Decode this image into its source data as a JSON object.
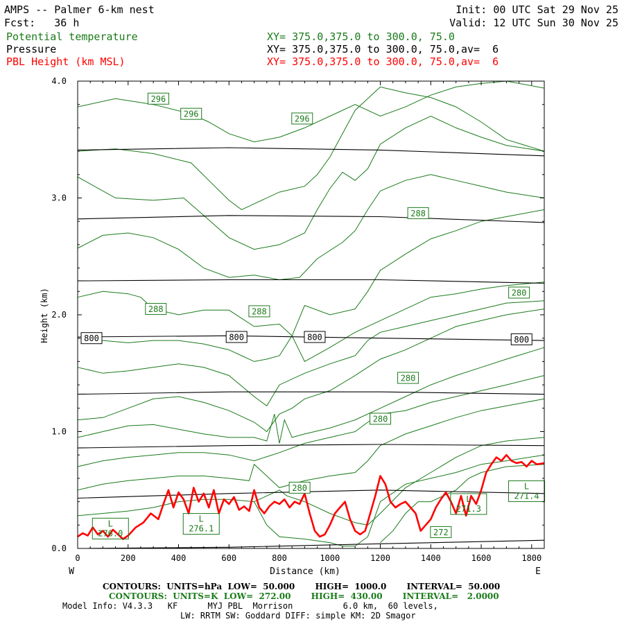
{
  "header": {
    "title": "AMPS -- Palmer 6-km nest",
    "fcst": "Fcst:   36 h",
    "init": "Init: 00 UTC Sat 29 Nov 25",
    "valid": "Valid: 12 UTC Sun 30 Nov 25",
    "fields": [
      {
        "name": "Potential temperature",
        "xy": "XY= 375.0,375.0 to 300.0, 75.0",
        "color": "#1a7a1a"
      },
      {
        "name": "Pressure",
        "xy": "XY= 375.0,375.0 to 300.0, 75.0,av=  6",
        "color": "#000000"
      },
      {
        "name": "PBL Height (km MSL)",
        "xy": "XY= 375.0,375.0 to 300.0, 75.0,av=  6",
        "color": "#ff0000"
      }
    ]
  },
  "chart_data": {
    "type": "line",
    "xlabel": "Distance (km)",
    "ylabel": "Height (km)",
    "xlim": [
      0,
      1850
    ],
    "ylim": [
      0,
      4.0
    ],
    "xticks": [
      0,
      200,
      400,
      600,
      800,
      1000,
      1200,
      1400,
      1600,
      1800
    ],
    "yticks": [
      0.0,
      1.0,
      2.0,
      3.0,
      4.0
    ],
    "ytick_labels": [
      "0.0",
      "1.0",
      "2.0",
      "3.0",
      "4.0"
    ],
    "left_label": "W",
    "right_label": "E",
    "pressure_contours": [
      {
        "x": [
          0,
          600,
          1200,
          1850
        ],
        "y": [
          3.41,
          3.43,
          3.41,
          3.36
        ]
      },
      {
        "x": [
          0,
          600,
          1200,
          1850
        ],
        "y": [
          2.82,
          2.85,
          2.84,
          2.79
        ]
      },
      {
        "x": [
          0,
          600,
          1200,
          1850
        ],
        "y": [
          2.29,
          2.3,
          2.3,
          2.27
        ]
      },
      {
        "x": [
          0,
          600,
          1200,
          1850
        ],
        "y": [
          1.81,
          1.82,
          1.8,
          1.78
        ]
      },
      {
        "x": [
          0,
          600,
          1200,
          1850
        ],
        "y": [
          1.32,
          1.34,
          1.34,
          1.32
        ]
      },
      {
        "x": [
          0,
          600,
          1200,
          1850
        ],
        "y": [
          0.86,
          0.88,
          0.89,
          0.88
        ]
      },
      {
        "x": [
          0,
          600,
          1200,
          1850
        ],
        "y": [
          0.43,
          0.47,
          0.5,
          0.47
        ]
      },
      {
        "x": [
          0,
          600,
          1200,
          1850
        ],
        "y": [
          0.0,
          0.01,
          0.04,
          0.07
        ]
      }
    ],
    "pressure_labels": [
      {
        "text": "800",
        "x": 55,
        "y": 1.8
      },
      {
        "text": "800",
        "x": 630,
        "y": 1.81
      },
      {
        "text": "800",
        "x": 940,
        "y": 1.81
      },
      {
        "text": "800",
        "x": 1760,
        "y": 1.79
      }
    ],
    "theta_contours": [
      {
        "x": [
          0,
          150,
          300,
          450,
          520,
          600,
          700,
          800,
          900,
          1000,
          1100,
          1200,
          1300,
          1400,
          1500,
          1600,
          1700,
          1800,
          1850
        ],
        "y": [
          3.78,
          3.85,
          3.8,
          3.72,
          3.65,
          3.55,
          3.48,
          3.52,
          3.6,
          3.7,
          3.8,
          3.7,
          3.78,
          3.88,
          3.95,
          3.98,
          4.0,
          3.96,
          3.94
        ]
      },
      {
        "x": [
          0,
          150,
          300,
          450,
          520,
          600,
          650,
          700,
          800,
          900,
          950,
          1000,
          1050,
          1100,
          1200,
          1300,
          1400,
          1500,
          1600,
          1700,
          1850
        ],
        "y": [
          3.4,
          3.42,
          3.38,
          3.3,
          3.15,
          2.98,
          2.9,
          2.95,
          3.05,
          3.1,
          3.2,
          3.35,
          3.55,
          3.75,
          3.95,
          3.9,
          3.86,
          3.78,
          3.65,
          3.5,
          3.4
        ]
      },
      {
        "x": [
          0,
          150,
          300,
          420,
          500,
          600,
          700,
          800,
          900,
          950,
          1000,
          1050,
          1100,
          1150,
          1200,
          1300,
          1400,
          1500,
          1600,
          1700,
          1850
        ],
        "y": [
          3.18,
          3.0,
          2.98,
          3.0,
          2.85,
          2.66,
          2.56,
          2.6,
          2.7,
          2.9,
          3.08,
          3.22,
          3.15,
          3.25,
          3.46,
          3.6,
          3.7,
          3.6,
          3.52,
          3.45,
          3.4
        ]
      },
      {
        "x": [
          0,
          100,
          200,
          300,
          400,
          500,
          600,
          700,
          800,
          880,
          950,
          1050,
          1100,
          1150,
          1200,
          1300,
          1400,
          1500,
          1600,
          1700,
          1850
        ],
        "y": [
          2.57,
          2.68,
          2.7,
          2.66,
          2.56,
          2.4,
          2.32,
          2.34,
          2.3,
          2.32,
          2.48,
          2.62,
          2.72,
          2.9,
          3.06,
          3.15,
          3.2,
          3.15,
          3.1,
          3.05,
          3.0
        ]
      },
      {
        "x": [
          0,
          100,
          200,
          250,
          300,
          400,
          500,
          600,
          700,
          800,
          850,
          900,
          1000,
          1100,
          1150,
          1200,
          1300,
          1400,
          1500,
          1600,
          1700,
          1850
        ],
        "y": [
          2.15,
          2.2,
          2.18,
          2.15,
          2.05,
          2.0,
          2.04,
          2.04,
          1.9,
          1.92,
          1.82,
          2.08,
          2.0,
          2.05,
          2.2,
          2.38,
          2.52,
          2.65,
          2.72,
          2.8,
          2.84,
          2.9
        ]
      },
      {
        "x": [
          0,
          100,
          200,
          300,
          400,
          500,
          600,
          650,
          700,
          750,
          800,
          850,
          900,
          1000,
          1100,
          1200,
          1300,
          1400,
          1500,
          1600,
          1700,
          1850
        ],
        "y": [
          1.8,
          1.78,
          1.76,
          1.78,
          1.78,
          1.75,
          1.7,
          1.65,
          1.6,
          1.62,
          1.65,
          1.82,
          1.6,
          1.72,
          1.85,
          1.95,
          2.05,
          2.15,
          2.18,
          2.22,
          2.25,
          2.28
        ]
      },
      {
        "x": [
          0,
          100,
          200,
          300,
          400,
          500,
          600,
          700,
          750,
          800,
          900,
          1000,
          1100,
          1150,
          1200,
          1300,
          1400,
          1500,
          1600,
          1700,
          1850
        ],
        "y": [
          1.55,
          1.5,
          1.52,
          1.55,
          1.58,
          1.55,
          1.48,
          1.3,
          1.22,
          1.4,
          1.5,
          1.58,
          1.65,
          1.78,
          1.85,
          1.9,
          1.95,
          2.0,
          2.05,
          2.1,
          2.12
        ]
      },
      {
        "x": [
          0,
          100,
          200,
          300,
          400,
          500,
          600,
          700,
          750,
          800,
          850,
          900,
          1000,
          1100,
          1200,
          1300,
          1400,
          1500,
          1600,
          1700,
          1850
        ],
        "y": [
          1.1,
          1.12,
          1.2,
          1.28,
          1.3,
          1.25,
          1.18,
          1.08,
          1.0,
          1.15,
          1.2,
          1.28,
          1.35,
          1.48,
          1.62,
          1.7,
          1.8,
          1.9,
          1.95,
          2.0,
          2.05
        ]
      },
      {
        "x": [
          0,
          100,
          200,
          300,
          400,
          500,
          600,
          700,
          750,
          780,
          800,
          820,
          850,
          900,
          1000,
          1100,
          1200,
          1300,
          1400,
          1500,
          1600,
          1700,
          1850
        ],
        "y": [
          0.95,
          1.0,
          1.05,
          1.06,
          1.02,
          0.98,
          0.95,
          0.95,
          0.92,
          1.15,
          0.9,
          1.1,
          0.95,
          0.98,
          1.03,
          1.1,
          1.2,
          1.3,
          1.4,
          1.48,
          1.55,
          1.62,
          1.72
        ]
      },
      {
        "x": [
          0,
          100,
          200,
          300,
          400,
          500,
          600,
          700,
          800,
          900,
          1000,
          1100,
          1150,
          1200,
          1300,
          1400,
          1500,
          1600,
          1700,
          1850
        ],
        "y": [
          0.7,
          0.75,
          0.78,
          0.8,
          0.82,
          0.82,
          0.8,
          0.75,
          0.82,
          0.9,
          0.95,
          1.0,
          1.08,
          1.15,
          1.18,
          1.25,
          1.3,
          1.35,
          1.4,
          1.48
        ]
      },
      {
        "x": [
          0,
          100,
          200,
          300,
          400,
          500,
          600,
          680,
          700,
          800,
          900,
          1000,
          1100,
          1150,
          1200,
          1300,
          1400,
          1500,
          1600,
          1700,
          1850
        ],
        "y": [
          0.5,
          0.55,
          0.58,
          0.6,
          0.62,
          0.62,
          0.6,
          0.58,
          0.72,
          0.52,
          0.58,
          0.62,
          0.65,
          0.75,
          0.88,
          0.98,
          1.05,
          1.12,
          1.18,
          1.22,
          1.28
        ]
      },
      {
        "x": [
          0,
          100,
          200,
          300,
          400,
          500,
          600,
          700,
          800,
          830,
          900,
          1000,
          1100,
          1150,
          1200,
          1300,
          1400,
          1500,
          1600,
          1700,
          1850
        ],
        "y": [
          0.28,
          0.3,
          0.32,
          0.35,
          0.4,
          0.42,
          0.42,
          0.4,
          0.5,
          0.45,
          0.4,
          0.3,
          0.22,
          0.2,
          0.3,
          0.52,
          0.65,
          0.78,
          0.88,
          0.92,
          0.95
        ]
      },
      {
        "x": [
          700,
          750,
          800,
          900,
          1000,
          1050,
          1100,
          1150,
          1200,
          1300,
          1400,
          1500,
          1600,
          1700,
          1850
        ],
        "y": [
          0.4,
          0.2,
          0.1,
          0.08,
          0.05,
          0.02,
          0.02,
          0.1,
          0.4,
          0.55,
          0.6,
          0.65,
          0.72,
          0.75,
          0.8
        ]
      },
      {
        "x": [
          1200,
          1250,
          1300,
          1350,
          1400,
          1450,
          1500,
          1550,
          1600,
          1700,
          1850
        ],
        "y": [
          0.05,
          0.15,
          0.3,
          0.4,
          0.4,
          0.45,
          0.5,
          0.6,
          0.65,
          0.7,
          0.72
        ]
      }
    ],
    "theta_labels": [
      {
        "text": "296",
        "x": 320,
        "y": 3.85
      },
      {
        "text": "296",
        "x": 450,
        "y": 3.72
      },
      {
        "text": "296",
        "x": 890,
        "y": 3.68
      },
      {
        "text": "288",
        "x": 1350,
        "y": 2.87
      },
      {
        "text": "280",
        "x": 1750,
        "y": 2.19
      },
      {
        "text": "288",
        "x": 310,
        "y": 2.05
      },
      {
        "text": "288",
        "x": 720,
        "y": 2.03
      },
      {
        "text": "280",
        "x": 1310,
        "y": 1.46
      },
      {
        "text": "280",
        "x": 1200,
        "y": 1.11
      },
      {
        "text": "280",
        "x": 880,
        "y": 0.52
      },
      {
        "text": "272",
        "x": 1440,
        "y": 0.14
      }
    ],
    "extrema_labels": [
      {
        "letter": "L",
        "value": "276.0",
        "x": 130,
        "y": 0.17
      },
      {
        "letter": "L",
        "value": "276.1",
        "x": 490,
        "y": 0.21
      },
      {
        "letter": "L",
        "value": "271.3",
        "x": 1550,
        "y": 0.38
      },
      {
        "letter": "L",
        "value": "271.4",
        "x": 1780,
        "y": 0.49
      }
    ],
    "pbl_height": {
      "x": [
        0,
        20,
        40,
        60,
        80,
        100,
        120,
        140,
        160,
        180,
        200,
        230,
        260,
        290,
        320,
        340,
        360,
        380,
        400,
        420,
        440,
        460,
        480,
        500,
        520,
        540,
        560,
        580,
        600,
        620,
        640,
        660,
        680,
        700,
        720,
        740,
        760,
        780,
        800,
        820,
        840,
        860,
        880,
        900,
        920,
        940,
        960,
        980,
        1000,
        1020,
        1040,
        1060,
        1080,
        1100,
        1120,
        1140,
        1160,
        1180,
        1200,
        1220,
        1240,
        1260,
        1280,
        1300,
        1320,
        1340,
        1360,
        1380,
        1400,
        1420,
        1440,
        1460,
        1480,
        1500,
        1520,
        1540,
        1560,
        1580,
        1600,
        1620,
        1640,
        1660,
        1680,
        1700,
        1720,
        1740,
        1760,
        1780,
        1800,
        1820,
        1850
      ],
      "y": [
        0.1,
        0.13,
        0.11,
        0.18,
        0.12,
        0.15,
        0.1,
        0.16,
        0.12,
        0.08,
        0.11,
        0.18,
        0.22,
        0.3,
        0.25,
        0.38,
        0.5,
        0.35,
        0.48,
        0.42,
        0.3,
        0.52,
        0.4,
        0.47,
        0.35,
        0.5,
        0.3,
        0.42,
        0.38,
        0.44,
        0.33,
        0.36,
        0.32,
        0.5,
        0.35,
        0.3,
        0.36,
        0.4,
        0.38,
        0.42,
        0.35,
        0.4,
        0.38,
        0.47,
        0.3,
        0.15,
        0.1,
        0.12,
        0.2,
        0.3,
        0.35,
        0.4,
        0.25,
        0.15,
        0.12,
        0.15,
        0.3,
        0.45,
        0.62,
        0.55,
        0.4,
        0.35,
        0.38,
        0.4,
        0.35,
        0.3,
        0.15,
        0.2,
        0.25,
        0.35,
        0.42,
        0.48,
        0.4,
        0.3,
        0.45,
        0.28,
        0.45,
        0.38,
        0.5,
        0.65,
        0.72,
        0.78,
        0.75,
        0.8,
        0.75,
        0.73,
        0.74,
        0.7,
        0.75,
        0.72,
        0.73
      ]
    }
  },
  "footer": {
    "line1": "CONTOURS:  UNITS=hPa  LOW=  50.000       HIGH=  1000.0       INTERVAL=  50.000",
    "line2": "CONTOURS:  UNITS=K  LOW=  272.00       HIGH=  430.00       INTERVAL=   2.0000",
    "line3": "Model Info: V4.3.3   KF      MYJ PBL  Morrison          6.0 km,  60 levels,",
    "line4": "LW: RRTM SW: Goddard DIFF: simple KM: 2D Smagor"
  },
  "colors": {
    "pressure": "#000000",
    "theta": "#1a7a1a",
    "pbl": "#ff0000"
  }
}
